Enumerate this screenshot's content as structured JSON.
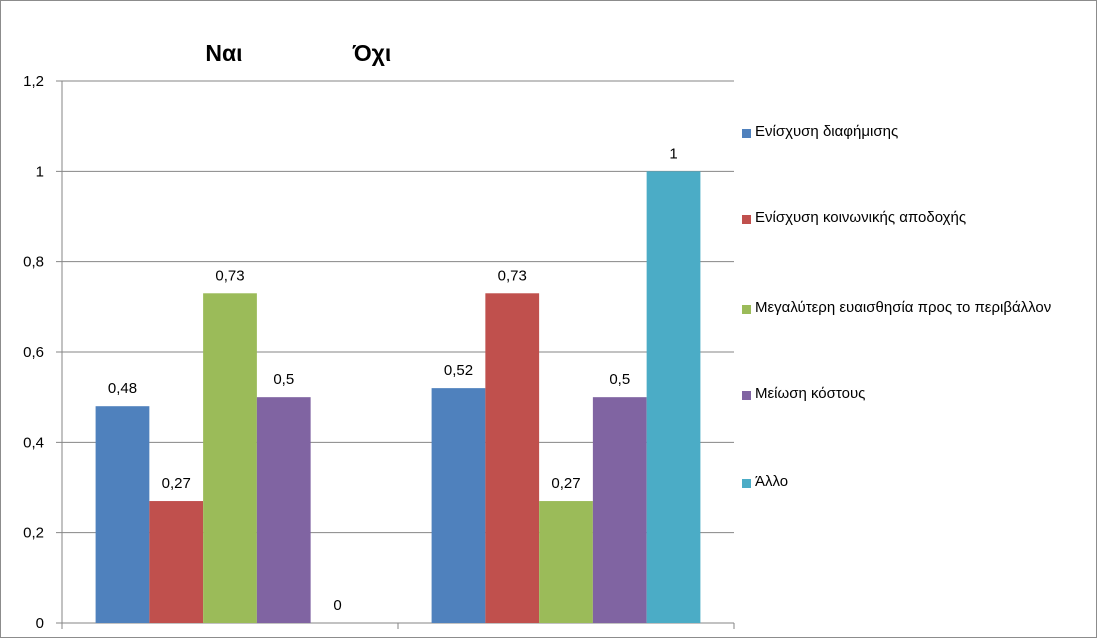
{
  "chart_data": {
    "type": "bar",
    "categories": [
      "Ναι",
      "Όχι"
    ],
    "series": [
      {
        "name": "Ενίσχυση διαφήμισης",
        "color": "#4f81bd",
        "values": [
          0.48,
          0.52
        ],
        "labels": [
          "0,48",
          "0,52"
        ]
      },
      {
        "name": "Ενίσχυση κοινωνικής αποδοχής",
        "color": "#c0504d",
        "values": [
          0.27,
          0.73
        ],
        "labels": [
          "0,27",
          "0,73"
        ]
      },
      {
        "name": "Μεγαλύτερη ευαισθησία προς το περιβάλλον",
        "color": "#9bbb59",
        "values": [
          0.73,
          0.27
        ],
        "labels": [
          "0,73",
          "0,27"
        ]
      },
      {
        "name": "Μείωση κόστους",
        "color": "#8064a2",
        "values": [
          0.5,
          0.5
        ],
        "labels": [
          "0,5",
          "0,5"
        ]
      },
      {
        "name": "Άλλο",
        "color": "#4bacc6",
        "values": [
          0,
          1
        ],
        "labels": [
          "0",
          "1"
        ]
      }
    ],
    "ylim": [
      0,
      1.2
    ],
    "yticks": [
      0,
      0.2,
      0.4,
      0.6,
      0.8,
      1,
      1.2
    ],
    "ytick_labels": [
      "0",
      "0,2",
      "0,4",
      "0,6",
      "0,8",
      "1",
      "1,2"
    ],
    "grid": true,
    "legend_position": "right"
  }
}
